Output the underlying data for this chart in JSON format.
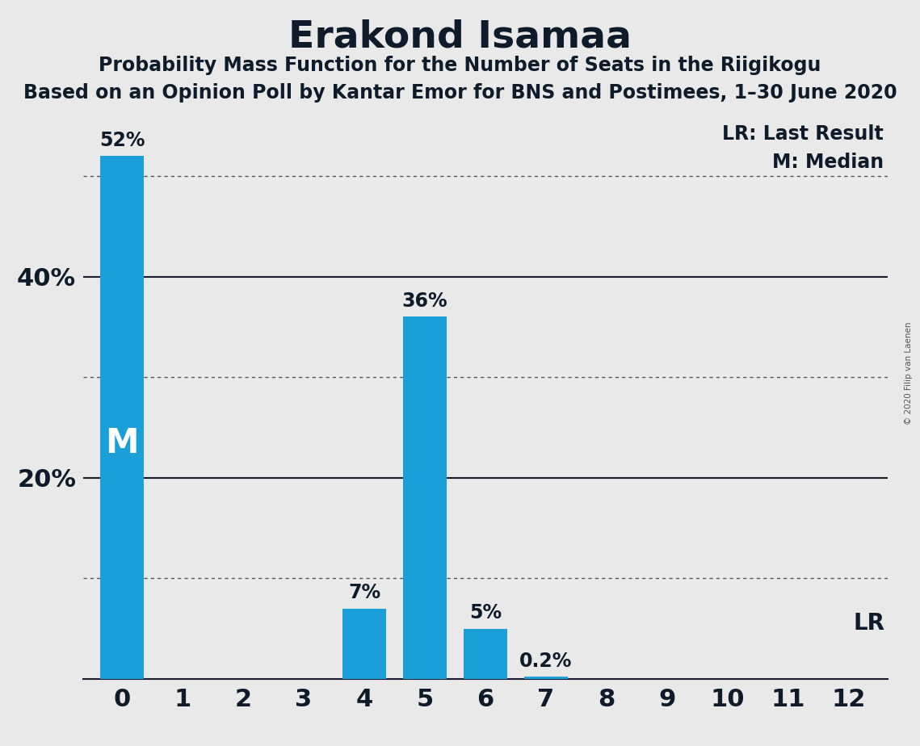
{
  "title": "Erakond Isamaa",
  "subtitle1": "Probability Mass Function for the Number of Seats in the Riigikogu",
  "subtitle2": "Based on an Opinion Poll by Kantar Emor for BNS and Postimees, 1–30 June 2020",
  "copyright": "© 2020 Filip van Laenen",
  "categories": [
    0,
    1,
    2,
    3,
    4,
    5,
    6,
    7,
    8,
    9,
    10,
    11,
    12
  ],
  "values": [
    52,
    0,
    0,
    0,
    7,
    36,
    5,
    0.2,
    0,
    0,
    0,
    0,
    0
  ],
  "bar_color": "#1a9fd8",
  "background_color": "#e9e9e9",
  "median_seat": 0,
  "lr_seat": 12,
  "ylim_max": 56,
  "solid_yticks": [
    20,
    40
  ],
  "dotted_yticks": [
    10,
    30,
    50
  ],
  "shown_ytick_labels": {
    "20": "20%",
    "40": "40%"
  },
  "legend_lr_label": "LR: Last Result",
  "legend_m_label": "M: Median",
  "title_fontsize": 34,
  "subtitle_fontsize": 17,
  "bar_label_fontsize": 17,
  "axis_tick_fontsize": 22,
  "legend_fontsize": 17,
  "m_label_fontsize": 30,
  "lr_label_fontsize": 20
}
